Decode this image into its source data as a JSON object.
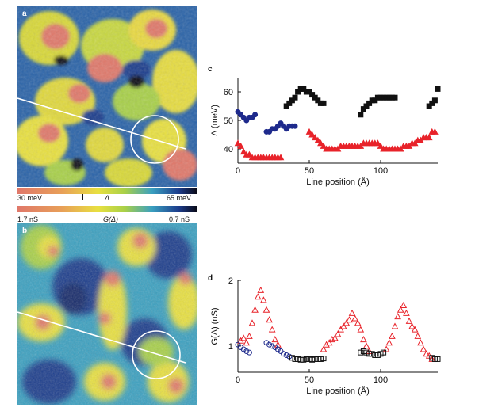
{
  "panels": {
    "a": "a",
    "b": "b",
    "c": "c",
    "d": "d"
  },
  "colorbar_gap": {
    "left": "30 meV",
    "mid": "Δ",
    "right": "65 meV"
  },
  "colorbar_conductance": {
    "left": "1.7 nS",
    "mid": "G(Δ)",
    "right": "0.7 nS"
  },
  "colors": {
    "red_series": "#e8232a",
    "blue_series": "#1e2a8c",
    "black_series": "#111111",
    "map_red": "#e0786a",
    "map_yellow": "#e8e040",
    "map_green": "#a8d048",
    "map_cyan": "#3aa0c0",
    "map_blue": "#1c3c8c"
  },
  "chart_data": [
    {
      "type": "scatter",
      "panel": "c",
      "xlabel": "Line position (Å)",
      "ylabel": "Δ (meV)",
      "xlim": [
        0,
        140
      ],
      "ylim": [
        35,
        65
      ],
      "xticks": [
        0,
        50,
        100
      ],
      "yticks": [
        40,
        50,
        60
      ],
      "series": [
        {
          "marker": "triangle",
          "color": "#e8232a",
          "x": [
            0,
            2,
            4,
            6,
            8,
            10,
            12,
            14,
            16,
            18,
            20,
            22,
            24,
            26,
            28,
            30,
            50,
            52,
            54,
            56,
            58,
            60,
            62,
            64,
            66,
            68,
            70,
            72,
            74,
            76,
            78,
            80,
            82,
            84,
            86,
            88,
            90,
            92,
            94,
            96,
            98,
            100,
            102,
            104,
            106,
            108,
            110,
            112,
            114,
            116,
            118,
            120,
            122,
            124,
            126,
            128,
            130,
            132,
            134,
            136,
            138
          ],
          "y": [
            42,
            41,
            39,
            38,
            38,
            37,
            37,
            37,
            37,
            37,
            37,
            37,
            37,
            37,
            37,
            37,
            46,
            45,
            44,
            43,
            42,
            41,
            40,
            40,
            40,
            40,
            40,
            41,
            41,
            41,
            41,
            41,
            41,
            41,
            41,
            42,
            42,
            42,
            42,
            42,
            42,
            41,
            40,
            40,
            40,
            40,
            40,
            40,
            40,
            41,
            41,
            41,
            42,
            42,
            43,
            43,
            44,
            44,
            44,
            46,
            46
          ]
        },
        {
          "marker": "circle",
          "color": "#1e2a8c",
          "x": [
            0,
            2,
            4,
            6,
            8,
            10,
            12,
            20,
            22,
            24,
            26,
            28,
            30,
            32,
            34,
            36,
            38,
            40
          ],
          "y": [
            53,
            52,
            51,
            50,
            51,
            51,
            52,
            46,
            46,
            47,
            47,
            48,
            49,
            48,
            47,
            48,
            48,
            48
          ]
        },
        {
          "marker": "square",
          "color": "#111111",
          "x": [
            34,
            36,
            38,
            40,
            42,
            44,
            46,
            48,
            50,
            52,
            54,
            56,
            58,
            60,
            86,
            88,
            90,
            92,
            94,
            96,
            98,
            100,
            102,
            104,
            106,
            108,
            110,
            134,
            136,
            138,
            140
          ],
          "y": [
            55,
            56,
            57,
            58,
            60,
            61,
            61,
            60,
            60,
            59,
            58,
            57,
            56,
            56,
            52,
            54,
            55,
            56,
            57,
            57,
            58,
            58,
            58,
            58,
            58,
            58,
            58,
            55,
            56,
            57,
            61
          ]
        }
      ]
    },
    {
      "type": "scatter",
      "panel": "d",
      "xlabel": "Line position (Å)",
      "ylabel": "G(Δ) (nS)",
      "xlim": [
        0,
        140
      ],
      "ylim": [
        0.6,
        2.0
      ],
      "xticks": [
        0,
        50,
        100
      ],
      "yticks": [
        1,
        2
      ],
      "series": [
        {
          "marker": "triangle",
          "color": "#e8232a",
          "x": [
            2,
            4,
            6,
            8,
            10,
            12,
            14,
            16,
            18,
            20,
            22,
            24,
            26,
            28,
            60,
            62,
            64,
            66,
            68,
            70,
            72,
            74,
            76,
            78,
            80,
            82,
            84,
            86,
            88,
            90,
            92,
            104,
            106,
            108,
            110,
            112,
            114,
            116,
            118,
            120,
            122,
            124,
            126,
            128,
            130,
            132,
            134,
            136
          ],
          "y": [
            1.08,
            1.12,
            1.05,
            1.15,
            1.35,
            1.55,
            1.75,
            1.85,
            1.7,
            1.55,
            1.4,
            1.25,
            1.1,
            1.02,
            0.95,
            1.02,
            1.05,
            1.1,
            1.12,
            1.18,
            1.25,
            1.3,
            1.35,
            1.4,
            1.5,
            1.42,
            1.35,
            1.25,
            1.1,
            1.0,
            0.92,
            0.95,
            1.05,
            1.15,
            1.3,
            1.45,
            1.55,
            1.62,
            1.5,
            1.38,
            1.3,
            1.25,
            1.15,
            1.05,
            0.95,
            0.88,
            0.85,
            0.8
          ]
        },
        {
          "marker": "circle",
          "color": "#1e2a8c",
          "x": [
            0,
            2,
            4,
            6,
            8,
            20,
            22,
            24,
            26,
            28,
            30,
            32,
            34,
            36
          ],
          "y": [
            1.02,
            0.98,
            0.95,
            0.92,
            0.9,
            1.05,
            1.02,
            1.0,
            0.98,
            0.95,
            0.92,
            0.88,
            0.86,
            0.84
          ]
        },
        {
          "marker": "square",
          "color": "#111111",
          "x": [
            38,
            40,
            42,
            44,
            46,
            48,
            50,
            52,
            54,
            56,
            58,
            60,
            86,
            88,
            90,
            92,
            94,
            96,
            98,
            100,
            102,
            136,
            138,
            140
          ],
          "y": [
            0.82,
            0.8,
            0.8,
            0.79,
            0.79,
            0.8,
            0.8,
            0.79,
            0.8,
            0.8,
            0.8,
            0.81,
            0.9,
            0.92,
            0.9,
            0.88,
            0.88,
            0.86,
            0.86,
            0.88,
            0.9,
            0.82,
            0.8,
            0.8
          ]
        }
      ]
    }
  ]
}
